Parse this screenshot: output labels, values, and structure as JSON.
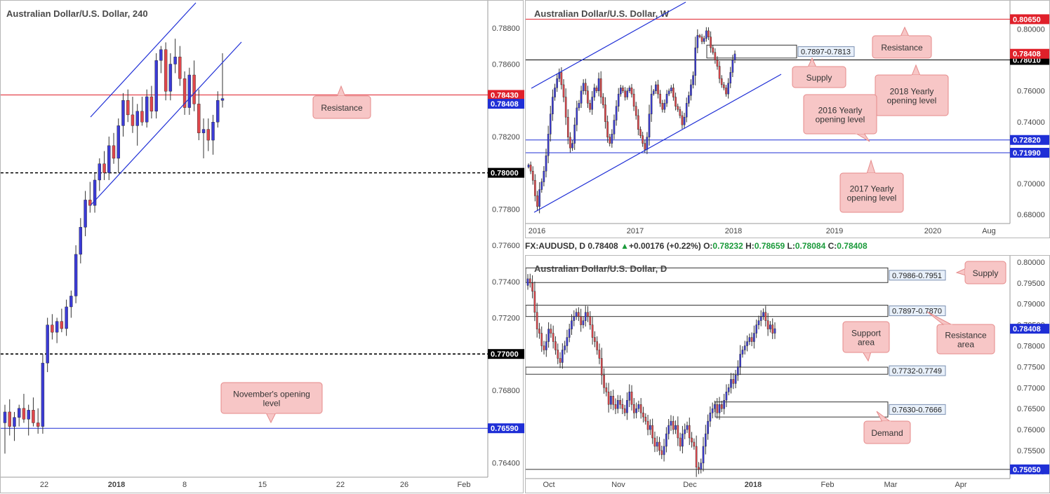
{
  "chart_data": [
    {
      "id": "h4",
      "type": "candlestick",
      "title": "Australian Dollar/U.S. Dollar, 240",
      "ylim": [
        0.7632,
        0.7895
      ],
      "y_ticks": [
        "0.78800",
        "0.78600",
        "0.78400",
        "0.78200",
        "0.78000",
        "0.77800",
        "0.77600",
        "0.77400",
        "0.77200",
        "0.77000",
        "0.76800",
        "0.76600",
        "0.76400"
      ],
      "x_ticks": [
        "22",
        "2018",
        "8",
        "15",
        "22",
        "26",
        "Feb"
      ],
      "levels": [
        {
          "value": 0.7843,
          "label": "0.78430",
          "style": "solid",
          "color": "#e0202a"
        },
        {
          "value": 0.78,
          "label": "0.78000",
          "style": "dashed",
          "color": "#000000"
        },
        {
          "value": 0.77,
          "label": "0.77000",
          "style": "dashed",
          "color": "#000000"
        },
        {
          "value": 0.7659,
          "label": "0.76590",
          "style": "solid",
          "color": "#1f2fd6"
        }
      ],
      "price_label": {
        "value": 0.78408,
        "label": "0.78408",
        "color": "#1f2fd6"
      },
      "annotations": [
        "Resistance",
        "November's opening level"
      ],
      "candles": [
        [
          0.7662,
          0.7672,
          0.7645,
          0.7668
        ],
        [
          0.7668,
          0.7675,
          0.7655,
          0.766
        ],
        [
          0.766,
          0.7668,
          0.7652,
          0.7665
        ],
        [
          0.7665,
          0.7672,
          0.766,
          0.767
        ],
        [
          0.767,
          0.7678,
          0.7662,
          0.7664
        ],
        [
          0.7664,
          0.7672,
          0.7655,
          0.7669
        ],
        [
          0.7669,
          0.7676,
          0.766,
          0.7662
        ],
        [
          0.7662,
          0.767,
          0.7656,
          0.766
        ],
        [
          0.766,
          0.77,
          0.7656,
          0.7695
        ],
        [
          0.7695,
          0.772,
          0.769,
          0.7716
        ],
        [
          0.7716,
          0.7722,
          0.7708,
          0.7712
        ],
        [
          0.7712,
          0.772,
          0.7706,
          0.7718
        ],
        [
          0.7718,
          0.7725,
          0.7712,
          0.7714
        ],
        [
          0.7714,
          0.773,
          0.771,
          0.7726
        ],
        [
          0.7726,
          0.7735,
          0.772,
          0.7732
        ],
        [
          0.7732,
          0.776,
          0.7728,
          0.7755
        ],
        [
          0.7755,
          0.7775,
          0.775,
          0.777
        ],
        [
          0.777,
          0.779,
          0.7765,
          0.7785
        ],
        [
          0.7785,
          0.7795,
          0.7778,
          0.7782
        ],
        [
          0.7782,
          0.78,
          0.7778,
          0.7796
        ],
        [
          0.7796,
          0.7808,
          0.779,
          0.7805
        ],
        [
          0.7805,
          0.7812,
          0.7796,
          0.78
        ],
        [
          0.78,
          0.782,
          0.7796,
          0.7815
        ],
        [
          0.7815,
          0.7822,
          0.7805,
          0.7808
        ],
        [
          0.7808,
          0.783,
          0.78,
          0.7826
        ],
        [
          0.7826,
          0.7844,
          0.782,
          0.784
        ],
        [
          0.784,
          0.7846,
          0.7828,
          0.7832
        ],
        [
          0.7832,
          0.7842,
          0.7822,
          0.7826
        ],
        [
          0.7826,
          0.7838,
          0.7815,
          0.7834
        ],
        [
          0.7834,
          0.7842,
          0.7826,
          0.7828
        ],
        [
          0.7828,
          0.7846,
          0.7825,
          0.7842
        ],
        [
          0.7842,
          0.7848,
          0.783,
          0.7834
        ],
        [
          0.7834,
          0.7866,
          0.783,
          0.7862
        ],
        [
          0.7862,
          0.787,
          0.7855,
          0.7868
        ],
        [
          0.7868,
          0.7872,
          0.784,
          0.7845
        ],
        [
          0.7845,
          0.7866,
          0.784,
          0.786
        ],
        [
          0.786,
          0.7874,
          0.7855,
          0.7864
        ],
        [
          0.7864,
          0.787,
          0.7848,
          0.7852
        ],
        [
          0.7852,
          0.7856,
          0.7832,
          0.7836
        ],
        [
          0.7836,
          0.7858,
          0.7832,
          0.7854
        ],
        [
          0.7854,
          0.7862,
          0.7834,
          0.7838
        ],
        [
          0.7838,
          0.7846,
          0.7818,
          0.7822
        ],
        [
          0.7822,
          0.783,
          0.7808,
          0.7824
        ],
        [
          0.7824,
          0.783,
          0.7812,
          0.7818
        ],
        [
          0.7818,
          0.7832,
          0.781,
          0.7828
        ],
        [
          0.7828,
          0.7845,
          0.7825,
          0.784
        ],
        [
          0.784,
          0.7866,
          0.7836,
          0.7841
        ]
      ]
    },
    {
      "id": "weekly",
      "type": "candlestick",
      "title": "Australian Dollar/U.S. Dollar, W",
      "ylim": [
        0.674,
        0.8185
      ],
      "y_ticks": [
        "0.80000",
        "0.78000",
        "0.76000",
        "0.74000",
        "0.72000",
        "0.70000",
        "0.68000"
      ],
      "x_ticks": [
        "2016",
        "2017",
        "2018",
        "2019",
        "2020",
        "Aug"
      ],
      "levels": [
        {
          "value": 0.8065,
          "label": "0.80650",
          "style": "solid",
          "color": "#e0202a"
        },
        {
          "value": 0.7801,
          "label": "0.78010",
          "style": "solid",
          "color": "#000000"
        },
        {
          "value": 0.7282,
          "label": "0.72820",
          "style": "solid",
          "color": "#1f2fd6"
        },
        {
          "value": 0.7199,
          "label": "0.71990",
          "style": "solid",
          "color": "#1f2fd6"
        }
      ],
      "zones": [
        {
          "label": "0.7897-0.7813",
          "low": 0.7813,
          "high": 0.7897
        }
      ],
      "price_label": {
        "value": 0.78408,
        "label": "0.78408",
        "color": "#e0202a"
      },
      "annotations": [
        "Resistance",
        "Supply",
        "2018 Yearly opening level",
        "2016 Yearly opening level",
        "2017 Yearly opening level"
      ],
      "closes": [
        0.712,
        0.708,
        0.702,
        0.692,
        0.685,
        0.696,
        0.701,
        0.708,
        0.718,
        0.732,
        0.745,
        0.756,
        0.762,
        0.768,
        0.772,
        0.764,
        0.756,
        0.743,
        0.73,
        0.723,
        0.726,
        0.738,
        0.749,
        0.752,
        0.76,
        0.765,
        0.76,
        0.752,
        0.748,
        0.756,
        0.762,
        0.76,
        0.768,
        0.756,
        0.751,
        0.74,
        0.73,
        0.726,
        0.732,
        0.741,
        0.75,
        0.758,
        0.762,
        0.76,
        0.756,
        0.76,
        0.762,
        0.758,
        0.75,
        0.744,
        0.735,
        0.731,
        0.726,
        0.722,
        0.73,
        0.745,
        0.758,
        0.76,
        0.764,
        0.758,
        0.752,
        0.748,
        0.752,
        0.758,
        0.76,
        0.762,
        0.756,
        0.75,
        0.748,
        0.744,
        0.738,
        0.743,
        0.752,
        0.757,
        0.764,
        0.77,
        0.788,
        0.796,
        0.795,
        0.792,
        0.794,
        0.799,
        0.795,
        0.788,
        0.785,
        0.78,
        0.776,
        0.768,
        0.764,
        0.762,
        0.758,
        0.765,
        0.772,
        0.78,
        0.784
      ]
    },
    {
      "id": "daily",
      "type": "candlestick",
      "title": "Australian Dollar/U.S. Dollar, D",
      "ylim": [
        0.7483,
        0.8015
      ],
      "y_ticks": [
        "0.80000",
        "0.79500",
        "0.79000",
        "0.78500",
        "0.78000",
        "0.77500",
        "0.77000",
        "0.76500",
        "0.76000",
        "0.75500",
        "0.75000"
      ],
      "x_ticks": [
        "Oct",
        "Nov",
        "Dec",
        "2018",
        "Feb",
        "Mar",
        "Apr"
      ],
      "levels": [
        {
          "value": 0.7505,
          "label": "0.75050",
          "style": "solid",
          "color": "#1f2fd6"
        }
      ],
      "zones": [
        {
          "label": "0.7986-0.7951",
          "low": 0.7951,
          "high": 0.7986
        },
        {
          "label": "0.7897-0.7870",
          "low": 0.787,
          "high": 0.7897
        },
        {
          "label": "0.7732-0.7749",
          "low": 0.7732,
          "high": 0.7749
        },
        {
          "label": "0.7630-0.7666",
          "low": 0.763,
          "high": 0.7666
        }
      ],
      "price_label": {
        "value": 0.78408,
        "label": "0.78408",
        "color": "#1f2fd6"
      },
      "annotations": [
        "Supply",
        "Resistance area",
        "Support area",
        "Demand"
      ],
      "closes": [
        0.796,
        0.795,
        0.793,
        0.788,
        0.784,
        0.783,
        0.78,
        0.779,
        0.781,
        0.784,
        0.783,
        0.781,
        0.779,
        0.777,
        0.776,
        0.779,
        0.78,
        0.782,
        0.784,
        0.786,
        0.787,
        0.788,
        0.787,
        0.785,
        0.786,
        0.788,
        0.787,
        0.785,
        0.782,
        0.781,
        0.779,
        0.777,
        0.773,
        0.77,
        0.769,
        0.766,
        0.768,
        0.766,
        0.765,
        0.767,
        0.766,
        0.765,
        0.764,
        0.767,
        0.769,
        0.766,
        0.764,
        0.765,
        0.766,
        0.764,
        0.763,
        0.762,
        0.76,
        0.761,
        0.758,
        0.756,
        0.757,
        0.755,
        0.754,
        0.756,
        0.759,
        0.761,
        0.762,
        0.76,
        0.761,
        0.758,
        0.756,
        0.759,
        0.76,
        0.761,
        0.758,
        0.757,
        0.756,
        0.751,
        0.7505,
        0.752,
        0.756,
        0.759,
        0.762,
        0.764,
        0.765,
        0.766,
        0.764,
        0.766,
        0.765,
        0.767,
        0.769,
        0.77,
        0.772,
        0.771,
        0.773,
        0.775,
        0.778,
        0.779,
        0.78,
        0.781,
        0.782,
        0.781,
        0.783,
        0.785,
        0.786,
        0.787,
        0.788,
        0.786,
        0.784,
        0.785,
        0.783,
        0.7841
      ]
    }
  ],
  "infobar": {
    "symbol": "FX:AUDUSD, D",
    "price": "0.78408",
    "change": "+0.00176 (+0.22%)",
    "o_label": "O:",
    "o": "0.78232",
    "h_label": "H:",
    "h": "0.78659",
    "l_label": "L:",
    "l": "0.78084",
    "c_label": "C:",
    "c": "0.78408"
  },
  "colors": {
    "bull": "#3b3bd6",
    "bear": "#e0474c",
    "callout_fill": "#f7c6c6",
    "callout_stroke": "#e58a8a"
  }
}
